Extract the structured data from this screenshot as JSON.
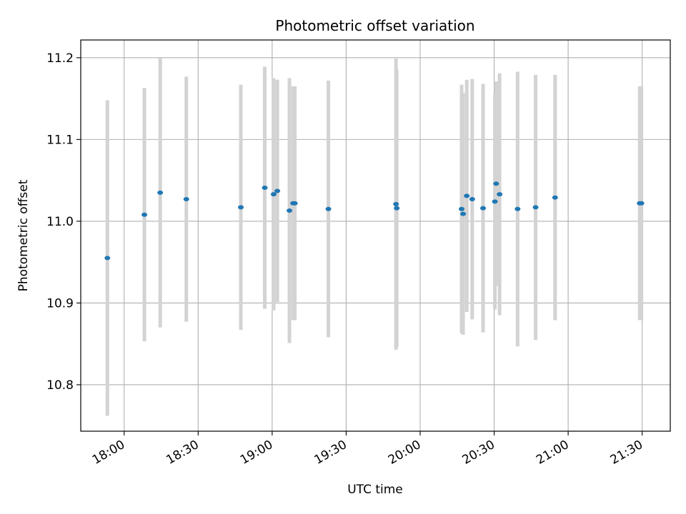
{
  "chart_data": {
    "type": "scatter",
    "title": "Photometric offset variation",
    "xlabel": "UTC time",
    "ylabel": "Photometric offset",
    "x_unit": "minutes since 00:00 UTC",
    "xlim": [
      1062.4,
      1301.4
    ],
    "ylim": [
      10.7432,
      11.2217
    ],
    "x_ticks": [
      {
        "value": 1080,
        "label": "18:00"
      },
      {
        "value": 1110,
        "label": "18:30"
      },
      {
        "value": 1140,
        "label": "19:00"
      },
      {
        "value": 1170,
        "label": "19:30"
      },
      {
        "value": 1200,
        "label": "20:00"
      },
      {
        "value": 1230,
        "label": "20:30"
      },
      {
        "value": 1260,
        "label": "21:00"
      },
      {
        "value": 1290,
        "label": "21:30"
      }
    ],
    "y_ticks": [
      {
        "value": 10.8,
        "label": "10.8"
      },
      {
        "value": 10.9,
        "label": "10.9"
      },
      {
        "value": 11.0,
        "label": "11.0"
      },
      {
        "value": 11.1,
        "label": "11.1"
      },
      {
        "value": 11.2,
        "label": "11.2"
      }
    ],
    "grid": true,
    "colors": {
      "points": "#1f77b4",
      "errorbars": "#d3d3d3",
      "grid": "#b0b0b0",
      "axes": "#000000"
    },
    "series": [
      {
        "name": "offset",
        "points": [
          {
            "t": 1073.2,
            "y": 10.955,
            "err": 0.193
          },
          {
            "t": 1088.2,
            "y": 11.008,
            "err": 0.155
          },
          {
            "t": 1094.6,
            "y": 11.035,
            "err": 0.165
          },
          {
            "t": 1105.2,
            "y": 11.027,
            "err": 0.15
          },
          {
            "t": 1127.3,
            "y": 11.017,
            "err": 0.15
          },
          {
            "t": 1137.0,
            "y": 11.041,
            "err": 0.148
          },
          {
            "t": 1140.6,
            "y": 11.033,
            "err": 0.142
          },
          {
            "t": 1142.1,
            "y": 11.037,
            "err": 0.136
          },
          {
            "t": 1147.0,
            "y": 11.013,
            "err": 0.162
          },
          {
            "t": 1148.5,
            "y": 11.022,
            "err": 0.143
          },
          {
            "t": 1149.2,
            "y": 11.022,
            "err": 0.143
          },
          {
            "t": 1162.8,
            "y": 11.015,
            "err": 0.157
          },
          {
            "t": 1190.2,
            "y": 11.021,
            "err": 0.178
          },
          {
            "t": 1190.5,
            "y": 11.016,
            "err": 0.17
          },
          {
            "t": 1216.8,
            "y": 11.015,
            "err": 0.152
          },
          {
            "t": 1217.4,
            "y": 11.009,
            "err": 0.148
          },
          {
            "t": 1218.9,
            "y": 11.031,
            "err": 0.142
          },
          {
            "t": 1221.1,
            "y": 11.027,
            "err": 0.147
          },
          {
            "t": 1225.5,
            "y": 11.016,
            "err": 0.152
          },
          {
            "t": 1230.3,
            "y": 11.024,
            "err": 0.132
          },
          {
            "t": 1230.8,
            "y": 11.046,
            "err": 0.125
          },
          {
            "t": 1232.2,
            "y": 11.033,
            "err": 0.148
          },
          {
            "t": 1239.5,
            "y": 11.015,
            "err": 0.168
          },
          {
            "t": 1246.8,
            "y": 11.017,
            "err": 0.162
          },
          {
            "t": 1254.7,
            "y": 11.029,
            "err": 0.15
          },
          {
            "t": 1289.0,
            "y": 11.022,
            "err": 0.143
          },
          {
            "t": 1289.7,
            "y": 11.022,
            "err": 0.143
          }
        ]
      }
    ]
  }
}
